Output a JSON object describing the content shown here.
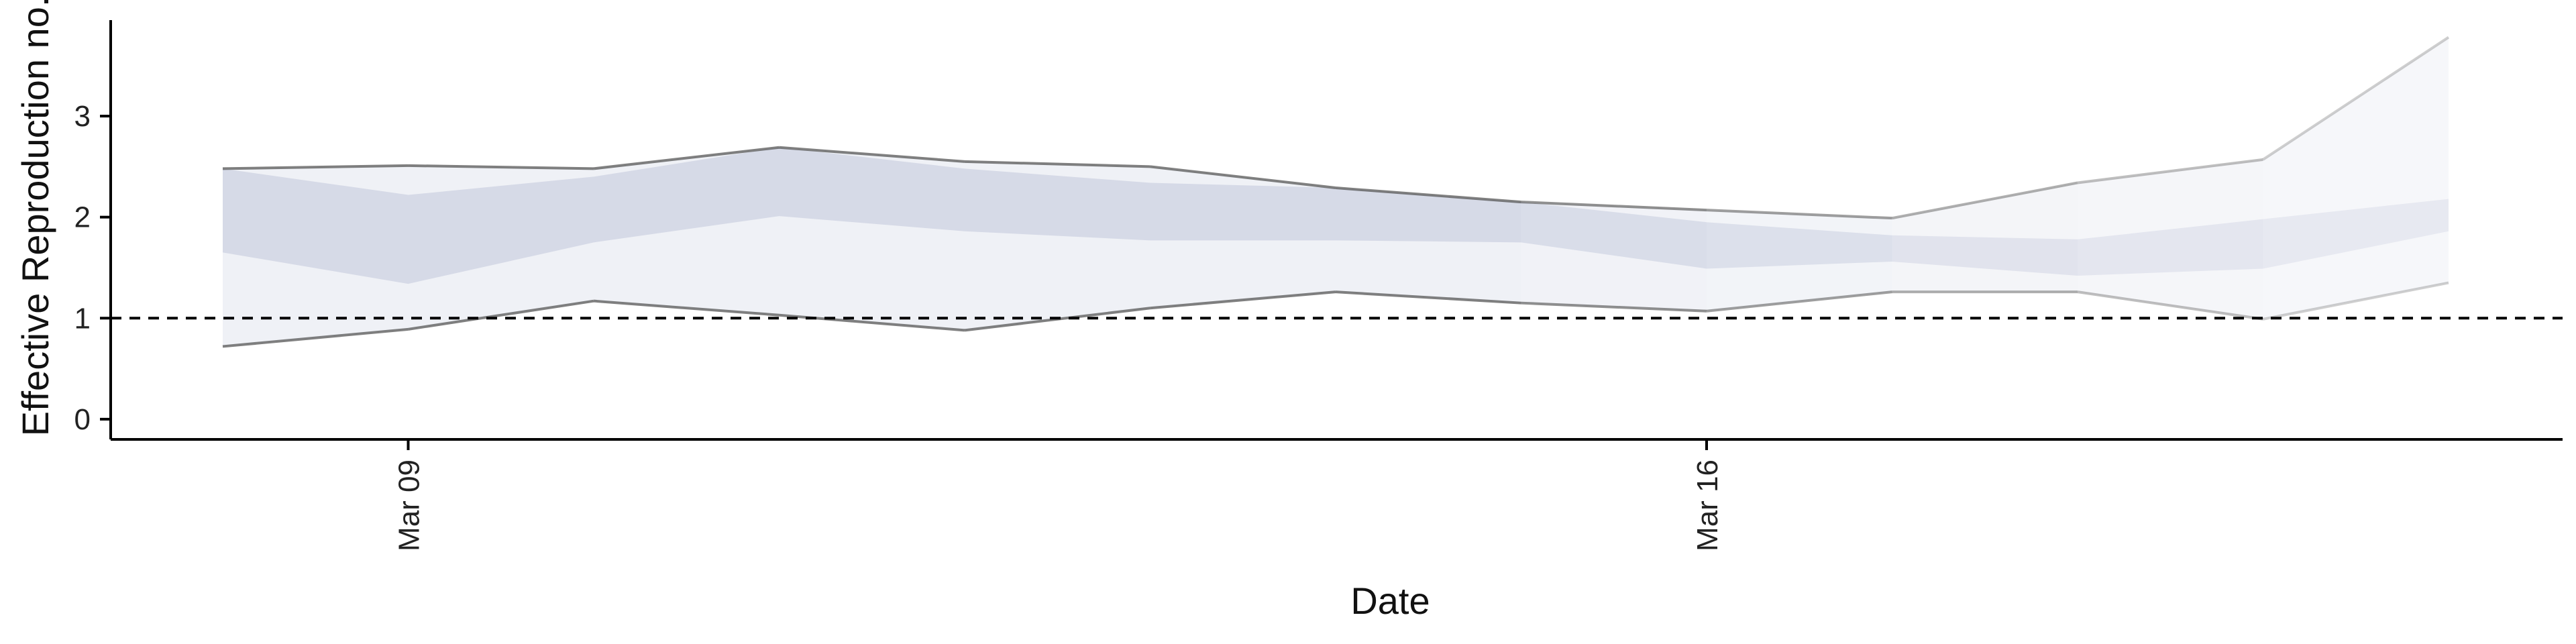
{
  "chart_data": {
    "type": "area",
    "title": "",
    "xlabel": "Date",
    "ylabel": "Effective Reproduction no.",
    "x": [
      "2020-03-08",
      "2020-03-09",
      "2020-03-10",
      "2020-03-11",
      "2020-03-12",
      "2020-03-13",
      "2020-03-14",
      "2020-03-15",
      "2020-03-16",
      "2020-03-17",
      "2020-03-18",
      "2020-03-19",
      "2020-03-20"
    ],
    "x_ticks": [
      {
        "date": "2020-03-09",
        "label": "Mar 09"
      },
      {
        "date": "2020-03-16",
        "label": "Mar 16"
      }
    ],
    "y_ticks": [
      0,
      1,
      2,
      3
    ],
    "ylim": [
      -0.2,
      3.95
    ],
    "reference_line": {
      "y": 1,
      "style": "dashed"
    },
    "grid": false,
    "legend": "none",
    "series": [
      {
        "band": "outer_90",
        "lower": [
          0.72,
          0.89,
          1.17,
          1.03,
          0.88,
          1.1,
          1.26,
          1.15,
          1.07,
          1.26,
          1.26,
          0.99,
          1.35
        ],
        "upper": [
          2.48,
          2.51,
          2.48,
          2.69,
          2.55,
          2.5,
          2.29,
          2.15,
          2.07,
          1.99,
          2.34,
          2.57,
          3.78
        ]
      },
      {
        "band": "inner_50",
        "lower": [
          1.65,
          1.34,
          1.75,
          2.01,
          1.86,
          1.77,
          1.77,
          1.75,
          1.49,
          1.56,
          1.42,
          1.49,
          1.86
        ],
        "upper": [
          2.48,
          2.22,
          2.4,
          2.69,
          2.48,
          2.34,
          2.29,
          2.15,
          1.95,
          1.82,
          1.78,
          1.98,
          2.18
        ]
      }
    ],
    "colors": {
      "band_fill": "#a8b0cc",
      "outline": "#555555",
      "reference_line": "#000000",
      "axis": "#000000"
    }
  }
}
